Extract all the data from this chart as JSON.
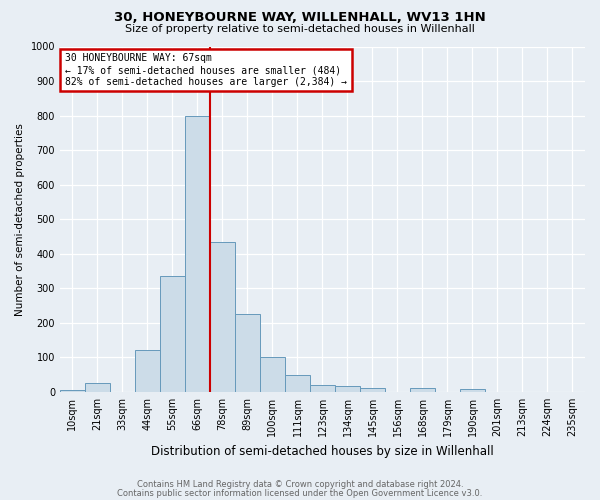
{
  "title": "30, HONEYBOURNE WAY, WILLENHALL, WV13 1HN",
  "subtitle": "Size of property relative to semi-detached houses in Willenhall",
  "xlabel": "Distribution of semi-detached houses by size in Willenhall",
  "ylabel": "Number of semi-detached properties",
  "footer_line1": "Contains HM Land Registry data © Crown copyright and database right 2024.",
  "footer_line2": "Contains public sector information licensed under the Open Government Licence v3.0.",
  "bin_labels": [
    "10sqm",
    "21sqm",
    "33sqm",
    "44sqm",
    "55sqm",
    "66sqm",
    "78sqm",
    "89sqm",
    "100sqm",
    "111sqm",
    "123sqm",
    "134sqm",
    "145sqm",
    "156sqm",
    "168sqm",
    "179sqm",
    "190sqm",
    "201sqm",
    "213sqm",
    "224sqm",
    "235sqm"
  ],
  "bar_heights": [
    5,
    25,
    0,
    120,
    335,
    800,
    435,
    225,
    100,
    50,
    20,
    18,
    12,
    0,
    10,
    0,
    8,
    0,
    0,
    0,
    0
  ],
  "bar_color": "#ccdce8",
  "bar_edge_color": "#6699bb",
  "property_line_x": 5.5,
  "annotation_title": "30 HONEYBOURNE WAY: 67sqm",
  "annotation_line1": "← 17% of semi-detached houses are smaller (484)",
  "annotation_line2": "82% of semi-detached houses are larger (2,384) →",
  "annotation_box_color": "#ffffff",
  "annotation_box_edge": "#cc0000",
  "vline_color": "#cc0000",
  "ylim": [
    0,
    1000
  ],
  "yticks": [
    0,
    100,
    200,
    300,
    400,
    500,
    600,
    700,
    800,
    900,
    1000
  ],
  "background_color": "#e8eef4",
  "grid_color": "#ffffff",
  "title_fontsize": 9.5,
  "subtitle_fontsize": 8,
  "ylabel_fontsize": 7.5,
  "xlabel_fontsize": 8.5,
  "tick_fontsize": 7,
  "annotation_fontsize": 7,
  "footer_fontsize": 6
}
